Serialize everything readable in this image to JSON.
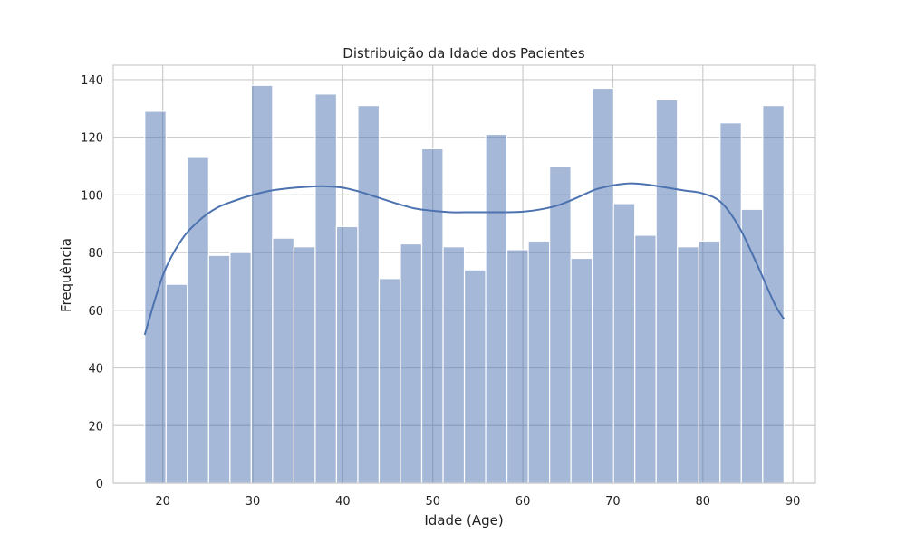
{
  "chart_data": {
    "type": "bar",
    "title": "Distribuição da Idade dos Pacientes",
    "xlabel": "Idade (Age)",
    "ylabel": "Frequência",
    "xlim": [
      14.5,
      92.5
    ],
    "ylim": [
      0,
      145
    ],
    "xticks": [
      20,
      30,
      40,
      50,
      60,
      70,
      80,
      90
    ],
    "yticks": [
      0,
      20,
      40,
      60,
      80,
      100,
      120,
      140
    ],
    "grid": true,
    "bar_color": "#4c72b0",
    "bar_opacity": 0.5,
    "kde_color": "#4c72b0",
    "bins": {
      "start": 18,
      "width": 2.367,
      "counts": [
        129,
        69,
        113,
        79,
        80,
        138,
        85,
        82,
        135,
        89,
        131,
        71,
        83,
        116,
        82,
        74,
        121,
        81,
        84,
        110,
        78,
        137,
        97,
        86,
        133,
        82,
        84,
        125,
        95,
        131
      ]
    },
    "kde": {
      "x": [
        18,
        20,
        22,
        24,
        26,
        28,
        30,
        32,
        34,
        36,
        38,
        40,
        42,
        44,
        46,
        48,
        50,
        52,
        54,
        56,
        58,
        60,
        62,
        64,
        66,
        68,
        70,
        72,
        74,
        76,
        78,
        80,
        82,
        84,
        86,
        88,
        89
      ],
      "y": [
        51.5,
        72,
        84,
        91,
        95.5,
        98,
        100,
        101.5,
        102.3,
        102.8,
        103,
        102.5,
        101,
        99,
        97,
        95.3,
        94.5,
        94,
        94,
        94,
        94,
        94.2,
        95,
        96.5,
        99,
        101.8,
        103.3,
        104,
        103.5,
        102.5,
        101.5,
        100.5,
        97.5,
        89,
        76,
        62,
        57
      ]
    }
  }
}
